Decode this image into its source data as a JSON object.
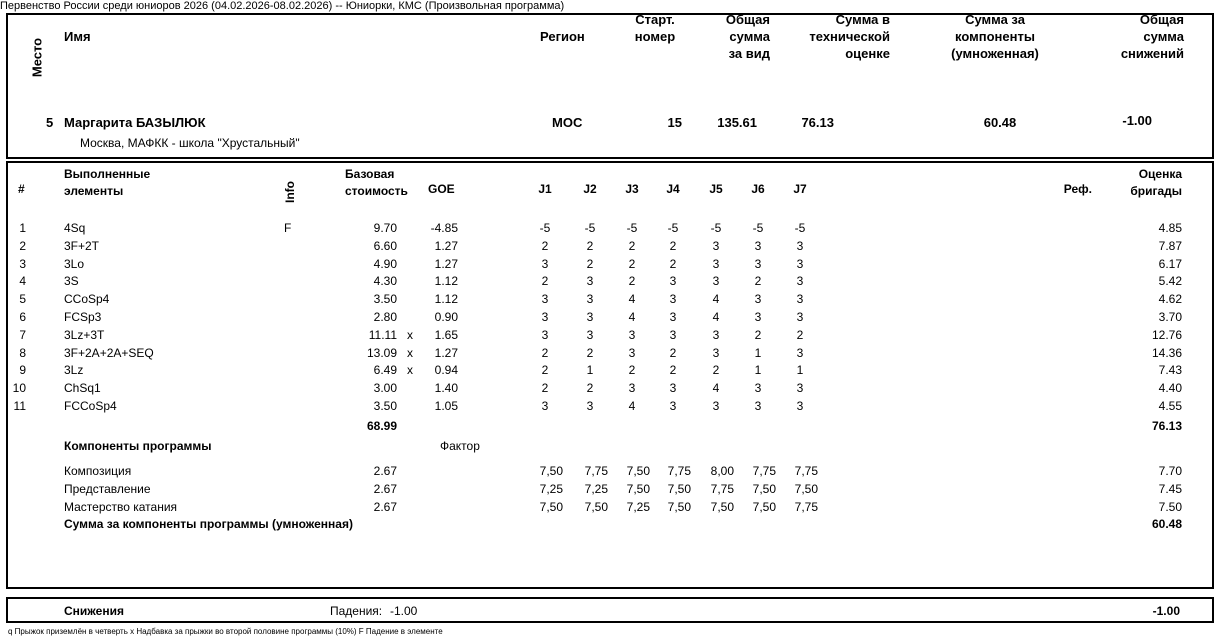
{
  "event_title": "Первенство России среди юниоров 2026 (04.02.2026-08.02.2026)  --  Юниорки, КМС  (Произвольная программа)",
  "header": {
    "place": "Место",
    "name": "Имя",
    "region": "Регион",
    "start": "Старт.\nномер",
    "total": "Общая\nсумма\nза вид",
    "tes": "Сумма в\nтехнической\nоценке",
    "pcs": "Сумма за\nкомпоненты\n(умноженная)",
    "ded": "Общая\nсумма\nснижений"
  },
  "skater": {
    "place": "5",
    "name": "Маргарита БАЗЫЛЮК",
    "club": "Москва, МАФКК - школа \"Хрустальный\"",
    "region": "МОС",
    "start": "15",
    "total": "135.61",
    "tes": "76.13",
    "pcs": "60.48",
    "ded": "-1.00"
  },
  "el_header": {
    "num": "#",
    "elements": "Выполненные\nэлементы",
    "info": "Info",
    "base": "Базовая\nстоимость",
    "goe": "GOE",
    "judges": [
      "J1",
      "J2",
      "J3",
      "J4",
      "J5",
      "J6",
      "J7"
    ],
    "ref": "Реф.",
    "score": "Оценка\nбригады"
  },
  "elements": [
    {
      "n": "1",
      "name": "4Sq",
      "info": "F",
      "base": "9.70",
      "x": "",
      "goe": "-4.85",
      "j": [
        "-5",
        "-5",
        "-5",
        "-5",
        "-5",
        "-5",
        "-5"
      ],
      "score": "4.85"
    },
    {
      "n": "2",
      "name": "3F+2T",
      "info": "",
      "base": "6.60",
      "x": "",
      "goe": "1.27",
      "j": [
        "2",
        "2",
        "2",
        "2",
        "3",
        "3",
        "3"
      ],
      "score": "7.87"
    },
    {
      "n": "3",
      "name": "3Lo",
      "info": "",
      "base": "4.90",
      "x": "",
      "goe": "1.27",
      "j": [
        "3",
        "2",
        "2",
        "2",
        "3",
        "3",
        "3"
      ],
      "score": "6.17"
    },
    {
      "n": "4",
      "name": "3S",
      "info": "",
      "base": "4.30",
      "x": "",
      "goe": "1.12",
      "j": [
        "2",
        "3",
        "2",
        "3",
        "3",
        "2",
        "3"
      ],
      "score": "5.42"
    },
    {
      "n": "5",
      "name": "CCoSp4",
      "info": "",
      "base": "3.50",
      "x": "",
      "goe": "1.12",
      "j": [
        "3",
        "3",
        "4",
        "3",
        "4",
        "3",
        "3"
      ],
      "score": "4.62"
    },
    {
      "n": "6",
      "name": "FCSp3",
      "info": "",
      "base": "2.80",
      "x": "",
      "goe": "0.90",
      "j": [
        "3",
        "3",
        "4",
        "3",
        "4",
        "3",
        "3"
      ],
      "score": "3.70"
    },
    {
      "n": "7",
      "name": "3Lz+3T",
      "info": "",
      "base": "11.11",
      "x": "x",
      "goe": "1.65",
      "j": [
        "3",
        "3",
        "3",
        "3",
        "3",
        "2",
        "2"
      ],
      "score": "12.76"
    },
    {
      "n": "8",
      "name": "3F+2A+2A+SEQ",
      "info": "",
      "base": "13.09",
      "x": "x",
      "goe": "1.27",
      "j": [
        "2",
        "2",
        "3",
        "2",
        "3",
        "1",
        "3"
      ],
      "score": "14.36"
    },
    {
      "n": "9",
      "name": "3Lz",
      "info": "",
      "base": "6.49",
      "x": "x",
      "goe": "0.94",
      "j": [
        "2",
        "1",
        "2",
        "2",
        "2",
        "1",
        "1"
      ],
      "score": "7.43"
    },
    {
      "n": "10",
      "name": "ChSq1",
      "info": "",
      "base": "3.00",
      "x": "",
      "goe": "1.40",
      "j": [
        "2",
        "2",
        "3",
        "3",
        "4",
        "3",
        "3"
      ],
      "score": "4.40"
    },
    {
      "n": "11",
      "name": "FCCoSp4",
      "info": "",
      "base": "3.50",
      "x": "",
      "goe": "1.05",
      "j": [
        "3",
        "3",
        "4",
        "3",
        "3",
        "3",
        "3"
      ],
      "score": "4.55"
    }
  ],
  "base_total": "68.99",
  "tes_total": "76.13",
  "components_title": "Компоненты программы",
  "factor_label": "Фактор",
  "components": [
    {
      "name": "Композиция",
      "factor": "2.67",
      "j": [
        "7,50",
        "7,75",
        "7,50",
        "7,75",
        "8,00",
        "7,75",
        "7,75"
      ],
      "score": "7.70"
    },
    {
      "name": "Представление",
      "factor": "2.67",
      "j": [
        "7,25",
        "7,25",
        "7,50",
        "7,50",
        "7,75",
        "7,50",
        "7,50"
      ],
      "score": "7.45"
    },
    {
      "name": "Мастерство катания",
      "factor": "2.67",
      "j": [
        "7,50",
        "7,50",
        "7,25",
        "7,50",
        "7,50",
        "7,50",
        "7,75"
      ],
      "score": "7.50"
    }
  ],
  "pcs_label": "Сумма за компоненты программы (умноженная)",
  "pcs_total": "60.48",
  "deductions": {
    "label": "Снижения",
    "falls_label": "Падения:",
    "falls_value": "-1.00",
    "total": "-1.00"
  },
  "legend": "q Прыжок приземлён в четверть   x Надбавка за прыжки во второй половине программы (10%)   F Падение в элементе"
}
